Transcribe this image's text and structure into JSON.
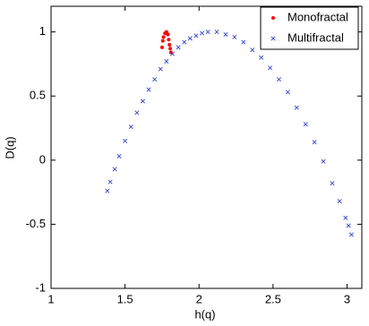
{
  "chart_data": {
    "type": "scatter",
    "x_label": "h(q)",
    "y_label": "D(q)",
    "xlim": [
      1,
      3.1
    ],
    "ylim": [
      -1,
      1.2
    ],
    "xticks": [
      1,
      1.5,
      2,
      2.5,
      3
    ],
    "yticks": [
      -1,
      -0.5,
      0,
      0.5,
      1
    ],
    "legend": "northeast",
    "series": [
      {
        "name": "Monofractal",
        "color": "#ff0000",
        "marker": "dot",
        "x": [
          1.75,
          1.755,
          1.76,
          1.77,
          1.78,
          1.79,
          1.795,
          1.8,
          1.805,
          1.81
        ],
        "values": [
          0.88,
          0.93,
          0.96,
          0.99,
          1.0,
          0.98,
          0.94,
          0.9,
          0.87,
          0.84
        ]
      },
      {
        "name": "Multifractal",
        "color": "#3344cc",
        "marker": "x",
        "x": [
          1.38,
          1.4,
          1.43,
          1.46,
          1.5,
          1.54,
          1.58,
          1.62,
          1.66,
          1.7,
          1.74,
          1.78,
          1.82,
          1.86,
          1.9,
          1.94,
          1.98,
          2.02,
          2.06,
          2.12,
          2.18,
          2.24,
          2.3,
          2.36,
          2.42,
          2.48,
          2.54,
          2.6,
          2.66,
          2.72,
          2.78,
          2.84,
          2.9,
          2.95,
          2.99,
          3.01,
          3.03
        ],
        "values": [
          -0.24,
          -0.17,
          -0.07,
          0.03,
          0.15,
          0.26,
          0.37,
          0.46,
          0.55,
          0.63,
          0.71,
          0.77,
          0.83,
          0.88,
          0.92,
          0.95,
          0.97,
          0.99,
          1.0,
          1.0,
          0.98,
          0.96,
          0.92,
          0.86,
          0.8,
          0.72,
          0.63,
          0.53,
          0.41,
          0.28,
          0.14,
          -0.01,
          -0.18,
          -0.32,
          -0.45,
          -0.51,
          -0.58
        ]
      }
    ]
  }
}
